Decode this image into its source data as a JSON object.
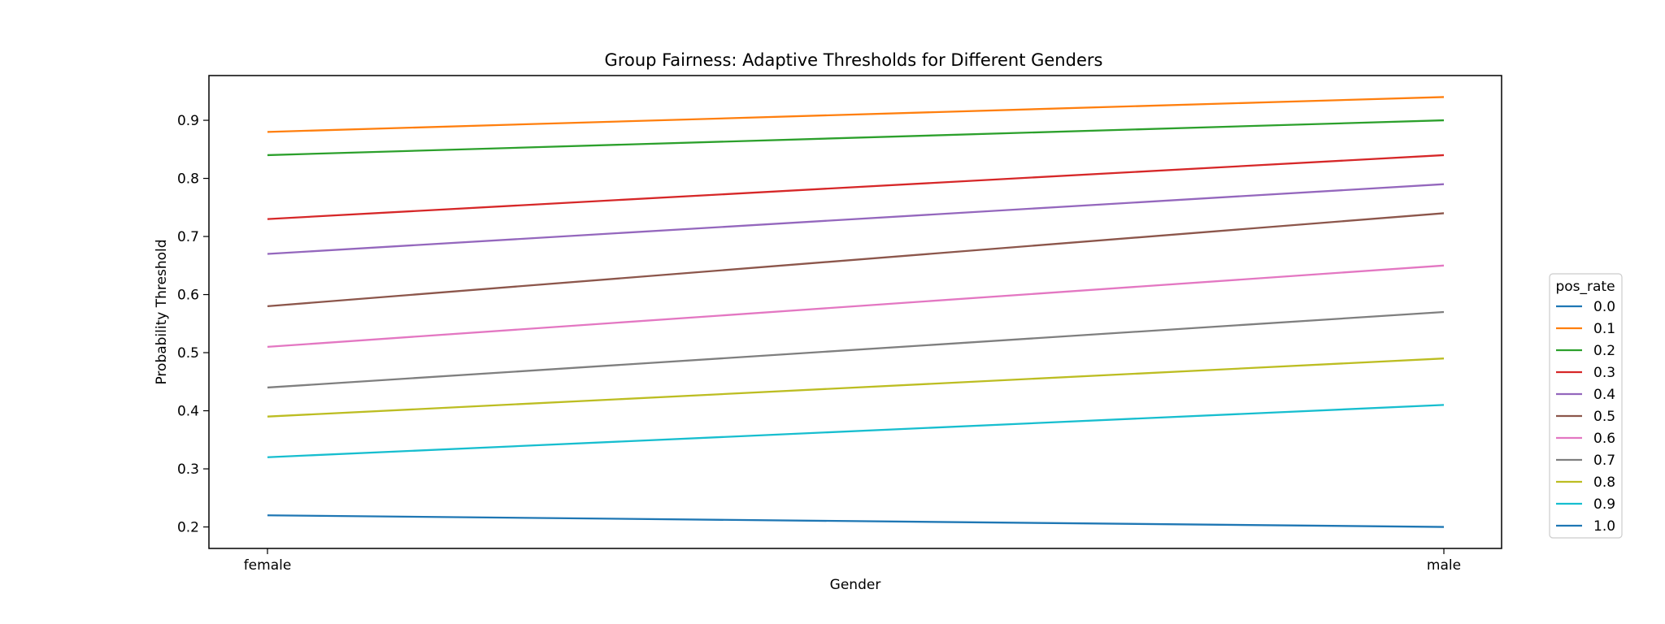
{
  "chart_data": {
    "type": "line",
    "title": "Group Fairness: Adaptive Thresholds for Different Genders",
    "xlabel": "Gender",
    "ylabel": "Probability Threshold",
    "categories": [
      "female",
      "male"
    ],
    "ylim": [
      0.163,
      0.977
    ],
    "yticks": [
      "0.2",
      "0.3",
      "0.4",
      "0.5",
      "0.6",
      "0.7",
      "0.8",
      "0.9"
    ],
    "grid": false,
    "legend": {
      "title": "pos_rate",
      "placement": "right-outside"
    },
    "series": [
      {
        "name": "0.0",
        "color": "#1f77b4",
        "values": [
          null,
          null
        ]
      },
      {
        "name": "0.1",
        "color": "#ff7f0e",
        "values": [
          0.88,
          0.94
        ]
      },
      {
        "name": "0.2",
        "color": "#2ca02c",
        "values": [
          0.84,
          0.9
        ]
      },
      {
        "name": "0.3",
        "color": "#d62728",
        "values": [
          0.73,
          0.84
        ]
      },
      {
        "name": "0.4",
        "color": "#9467bd",
        "values": [
          0.67,
          0.79
        ]
      },
      {
        "name": "0.5",
        "color": "#8c564b",
        "values": [
          0.58,
          0.74
        ]
      },
      {
        "name": "0.6",
        "color": "#e377c2",
        "values": [
          0.51,
          0.65
        ]
      },
      {
        "name": "0.7",
        "color": "#7f7f7f",
        "values": [
          0.44,
          0.57
        ]
      },
      {
        "name": "0.8",
        "color": "#bcbd22",
        "values": [
          0.39,
          0.49
        ]
      },
      {
        "name": "0.9",
        "color": "#17becf",
        "values": [
          0.32,
          0.41
        ]
      },
      {
        "name": "1.0",
        "color": "#1f77b4",
        "values": [
          0.22,
          0.2
        ]
      }
    ]
  }
}
